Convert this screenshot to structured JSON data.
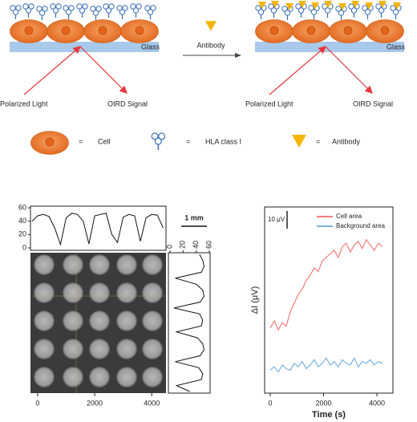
{
  "diagram": {
    "panels": [
      {
        "substrate": "Glass",
        "light": "Polarized Light",
        "signal": "OIRD Signal"
      },
      {
        "substrate": "Glass",
        "light": "Polarized Light",
        "signal": "OIRD Signal"
      }
    ],
    "arrow_label": "Antibody",
    "legend": [
      {
        "eq": "=",
        "label": "Cell"
      },
      {
        "eq": "=",
        "label": "HLA class I"
      },
      {
        "eq": "=",
        "label": "Antibody"
      }
    ],
    "image": {
      "scale_label": "1 mm"
    }
  },
  "chart_data": [
    {
      "type": "line",
      "color": "#111111",
      "x": [
        -200,
        0,
        200,
        400,
        600,
        800,
        1000,
        1200,
        1400,
        1600,
        1800,
        2000,
        2200,
        2400,
        2600,
        2800,
        3000,
        3200,
        3400,
        3600,
        3800,
        4000,
        4200,
        4400
      ],
      "values": [
        40,
        48,
        50,
        47,
        30,
        5,
        45,
        52,
        50,
        40,
        6,
        48,
        50,
        52,
        20,
        8,
        46,
        50,
        48,
        10,
        45,
        50,
        49,
        30
      ],
      "xlim": [
        -250,
        4500
      ],
      "xticks": [
        0,
        2000,
        4000
      ],
      "ylim": [
        0,
        60
      ],
      "yticks": [
        0,
        20,
        40,
        60
      ]
    },
    {
      "type": "line",
      "orientation": "vertical",
      "color": "#111111",
      "values": [
        45,
        50,
        52,
        48,
        8,
        40,
        50,
        52,
        46,
        6,
        45,
        50,
        48,
        10,
        42,
        50,
        52,
        46,
        8,
        44,
        50,
        48,
        10,
        30
      ],
      "xlim": [
        0,
        60
      ],
      "xticks": [
        0,
        20,
        40,
        60
      ]
    },
    {
      "type": "line",
      "xlabel": "Time (s)",
      "ylabel": "ΔI (μV)",
      "legend": "upper right",
      "x": [
        0,
        150,
        300,
        450,
        600,
        750,
        900,
        1050,
        1200,
        1350,
        1500,
        1650,
        1800,
        1950,
        2100,
        2250,
        2400,
        2550,
        2700,
        2850,
        3000,
        3150,
        3300,
        3450,
        3600,
        3750,
        3900,
        4050,
        4200
      ],
      "series": [
        {
          "name": "Cell area",
          "color": "#f47c7c",
          "values": [
            36,
            40,
            35,
            39,
            37,
            45,
            50,
            55,
            58,
            63,
            66,
            70,
            68,
            74,
            76,
            78,
            80,
            76,
            82,
            84,
            79,
            83,
            85,
            81,
            86,
            83,
            80,
            84,
            82
          ]
        },
        {
          "name": "Background area",
          "color": "#7ab4e0",
          "values": [
            12,
            14,
            11,
            15,
            13,
            12,
            16,
            14,
            17,
            13,
            15,
            18,
            14,
            16,
            19,
            15,
            17,
            14,
            18,
            16,
            15,
            19,
            14,
            17,
            16,
            18,
            15,
            17,
            16
          ]
        }
      ],
      "xlim": [
        -210,
        4600
      ],
      "xticks": [
        0,
        2000,
        4000
      ],
      "ylim": [
        0,
        100
      ],
      "scale_bar": {
        "value": 10,
        "label": "10 μV"
      }
    }
  ]
}
